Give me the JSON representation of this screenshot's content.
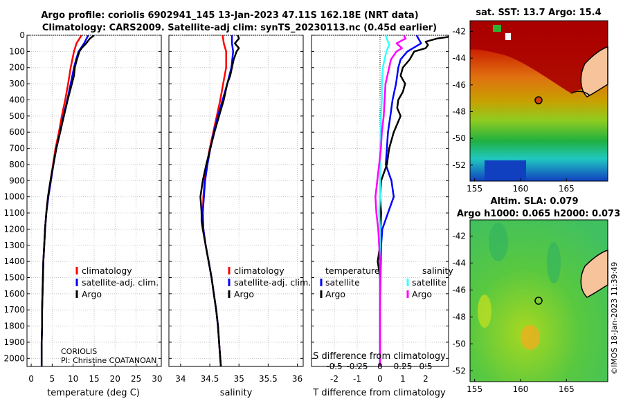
{
  "title": {
    "line1": "Argo profile: coriolis 6902941_145 13-Jan-2023 47.11S 162.18E (NRT data)",
    "line2": "Climatology: CARS2009. Satellite-adj clim: synTS_20230113.nc (0.45d earlier)"
  },
  "colors": {
    "argo": "#000000",
    "climatology": "#ff0000",
    "satellite": "#0000ff",
    "sat_salinity": "#33ffff",
    "argo_salinity_diff": "#ff00ff"
  },
  "depth_ticks": [
    "0",
    "100",
    "200",
    "300",
    "400",
    "500",
    "600",
    "700",
    "800",
    "900",
    "1000",
    "1100",
    "1200",
    "1300",
    "1400",
    "1500",
    "1600",
    "1700",
    "1800",
    "1900",
    "2000"
  ],
  "chart_data": [
    {
      "type": "line",
      "name": "temperature",
      "xlabel": "temperature (deg C)",
      "xlim": [
        -1,
        31
      ],
      "xticks": [
        "0",
        "5",
        "10",
        "15",
        "20",
        "25",
        "30"
      ],
      "ylim": [
        0,
        2050
      ],
      "legend": [
        "climatology",
        "satellite-adj. clim.",
        "Argo"
      ],
      "series": [
        {
          "name": "climatology",
          "depth": [
            0,
            50,
            100,
            150,
            200,
            300,
            400,
            500,
            600,
            700,
            800,
            900,
            1000,
            1100,
            1200,
            1300,
            1400,
            1500,
            1600,
            1700,
            1800,
            1900,
            2000,
            2050
          ],
          "values": [
            12.0,
            10.8,
            10.2,
            9.8,
            9.4,
            8.8,
            8.1,
            7.3,
            6.6,
            5.8,
            5.2,
            4.6,
            4.0,
            3.6,
            3.3,
            3.1,
            2.9,
            2.8,
            2.7,
            2.6,
            2.6,
            2.5,
            2.5,
            2.5
          ]
        },
        {
          "name": "satellite-adj. clim.",
          "depth": [
            0,
            50,
            100,
            150,
            200,
            300,
            400,
            500,
            600,
            700,
            800,
            900,
            1000,
            1100,
            1200,
            1300,
            1400,
            1500,
            1600,
            1700,
            1800,
            1900,
            2000,
            2050
          ],
          "values": [
            13.6,
            12.6,
            11.3,
            10.7,
            10.2,
            9.4,
            8.6,
            7.7,
            6.9,
            6.0,
            5.3,
            4.7,
            4.1,
            3.6,
            3.3,
            3.1,
            2.9,
            2.8,
            2.7,
            2.6,
            2.6,
            2.5,
            2.5,
            2.5
          ]
        },
        {
          "name": "Argo",
          "depth": [
            0,
            20,
            50,
            80,
            100,
            150,
            200,
            250,
            300,
            400,
            500,
            600,
            700,
            800,
            900,
            1000,
            1100,
            1200,
            1300,
            1400,
            1500,
            1600,
            1700,
            1800,
            1900,
            2000,
            2050
          ],
          "values": [
            15.0,
            14.0,
            13.1,
            12.0,
            11.5,
            10.9,
            10.4,
            10.2,
            9.7,
            8.7,
            7.8,
            6.9,
            6.0,
            5.3,
            4.6,
            4.0,
            3.6,
            3.3,
            3.1,
            2.9,
            2.8,
            2.7,
            2.6,
            2.6,
            2.5,
            2.5,
            2.5
          ]
        }
      ]
    },
    {
      "type": "line",
      "name": "salinity",
      "xlabel": "salinity",
      "xlim": [
        33.8,
        36.1
      ],
      "xticks": [
        "34",
        "34.5",
        "35",
        "35.5",
        "36"
      ],
      "ylim": [
        0,
        2050
      ],
      "legend": [
        "climatology",
        "satellite-adj. clim.",
        "Argo"
      ],
      "series": [
        {
          "name": "climatology",
          "depth": [
            0,
            50,
            100,
            200,
            300,
            400,
            500,
            600,
            700,
            800,
            900,
            1000,
            1100,
            1200,
            1300,
            1400,
            1500,
            1600,
            1700,
            1800,
            1900,
            2000,
            2050
          ],
          "values": [
            34.72,
            34.74,
            34.78,
            34.78,
            34.73,
            34.68,
            34.62,
            34.56,
            34.5,
            34.45,
            34.41,
            34.39,
            34.38,
            34.39,
            34.43,
            34.48,
            34.53,
            34.57,
            34.61,
            34.64,
            34.66,
            34.68,
            34.69
          ]
        },
        {
          "name": "satellite-adj. clim.",
          "depth": [
            0,
            50,
            100,
            200,
            300,
            400,
            500,
            600,
            700,
            800,
            900,
            1000,
            1100,
            1200,
            1300,
            1400,
            1500,
            1600,
            1700,
            1800,
            1900,
            2000,
            2050
          ],
          "values": [
            34.88,
            34.88,
            34.9,
            34.87,
            34.8,
            34.72,
            34.64,
            34.57,
            34.51,
            34.46,
            34.42,
            34.4,
            34.38,
            34.39,
            34.43,
            34.48,
            34.53,
            34.57,
            34.61,
            34.64,
            34.66,
            34.68,
            34.69
          ]
        },
        {
          "name": "Argo",
          "depth": [
            0,
            20,
            50,
            80,
            100,
            150,
            200,
            250,
            300,
            350,
            400,
            500,
            600,
            700,
            800,
            900,
            1000,
            1050,
            1100,
            1150,
            1200,
            1300,
            1400,
            1500,
            1600,
            1700,
            1800,
            1900,
            2000,
            2050
          ],
          "values": [
            34.98,
            35.0,
            34.93,
            35.0,
            34.96,
            34.91,
            34.88,
            34.85,
            34.8,
            34.77,
            34.74,
            34.66,
            34.58,
            34.51,
            34.44,
            34.38,
            34.34,
            34.35,
            34.36,
            34.36,
            34.38,
            34.43,
            34.48,
            34.53,
            34.57,
            34.61,
            34.64,
            34.66,
            34.68,
            34.69
          ]
        }
      ]
    },
    {
      "type": "line",
      "name": "differences",
      "xlabel": "T difference from climatology",
      "xlabel_top": "S difference from climatology",
      "xlim": [
        -3,
        3
      ],
      "xticks": [
        "-2",
        "-1",
        "0",
        "1",
        "2"
      ],
      "sticks": [
        "-0.5",
        "-0.25",
        "0",
        "0.25",
        "0.5"
      ],
      "ylim": [
        0,
        2050
      ],
      "legend_t_title": "temperature",
      "legend_s_title": "salinity",
      "legend_t": [
        "satellite",
        "Argo"
      ],
      "legend_s": [
        "satellite",
        "Argo"
      ],
      "series": [
        {
          "name": "T satellite",
          "depth": [
            0,
            50,
            100,
            150,
            200,
            300,
            400,
            500,
            600,
            700,
            800,
            900,
            1000,
            1100,
            1200,
            1300,
            1500,
            1700,
            1900,
            2050
          ],
          "values": [
            1.6,
            1.8,
            1.2,
            0.9,
            0.8,
            0.7,
            0.55,
            0.45,
            0.35,
            0.3,
            0.25,
            0.5,
            0.6,
            0.35,
            0.1,
            0.05,
            0.02,
            0.0,
            0.0,
            0.0
          ]
        },
        {
          "name": "T Argo",
          "depth": [
            0,
            10,
            20,
            40,
            60,
            80,
            100,
            150,
            200,
            250,
            300,
            350,
            400,
            450,
            500,
            550,
            600,
            700,
            800,
            900,
            1000,
            1100,
            1200,
            1300,
            1400,
            1500,
            1600,
            1700,
            1800,
            1900,
            2000,
            2050
          ],
          "values": [
            3.0,
            3.0,
            2.5,
            2.0,
            2.1,
            2.0,
            1.5,
            1.3,
            1.0,
            0.9,
            1.1,
            1.0,
            0.8,
            0.75,
            0.9,
            0.75,
            0.6,
            0.4,
            0.3,
            0.05,
            0.0,
            0.05,
            0.02,
            0.0,
            -0.1,
            0.0,
            0.0,
            0.0,
            0.0,
            0.0,
            0.0,
            0.0
          ]
        },
        {
          "name": "S satellite",
          "depth": [
            0,
            30,
            60,
            100,
            150,
            200,
            300,
            400,
            500,
            600,
            700,
            800,
            900,
            1000,
            1100,
            1200,
            1400,
            1600,
            1800,
            2000,
            2050
          ],
          "values": [
            0.06,
            0.08,
            0.1,
            0.07,
            0.05,
            0.03,
            0.02,
            0.02,
            0.01,
            0.01,
            0.0,
            0.0,
            0.0,
            0.0,
            -0.01,
            0.0,
            0.0,
            0.0,
            0.0,
            0.0,
            0.0
          ]
        },
        {
          "name": "S Argo",
          "depth": [
            0,
            20,
            50,
            80,
            100,
            150,
            200,
            250,
            300,
            400,
            500,
            600,
            700,
            800,
            900,
            1000,
            1100,
            1200,
            1300,
            1400,
            1500,
            1600,
            1800,
            2000,
            2050
          ],
          "values": [
            0.26,
            0.28,
            0.18,
            0.24,
            0.18,
            0.12,
            0.1,
            0.08,
            0.06,
            0.05,
            0.04,
            0.02,
            0.01,
            -0.01,
            -0.03,
            -0.05,
            -0.04,
            -0.02,
            -0.01,
            0.0,
            0.0,
            0.0,
            0.0,
            0.0,
            0.0
          ]
        }
      ]
    }
  ],
  "credits": {
    "line1": "CORIOLIS",
    "line2": "PI: Christine COATANOAN"
  },
  "maps": {
    "sst_title": "sat. SST: 13.7 Argo: 15.4",
    "sla_title1": "Altim. SLA: 0.079",
    "sla_title2": "Argo h1000: 0.065 h2000: 0.073",
    "lat_ticks": [
      "-42",
      "-44",
      "-46",
      "-48",
      "-50",
      "-52"
    ],
    "lon_ticks": [
      "155",
      "160",
      "165"
    ],
    "watermark": "©IMOS 18-Jan-2023 11:39:49"
  }
}
